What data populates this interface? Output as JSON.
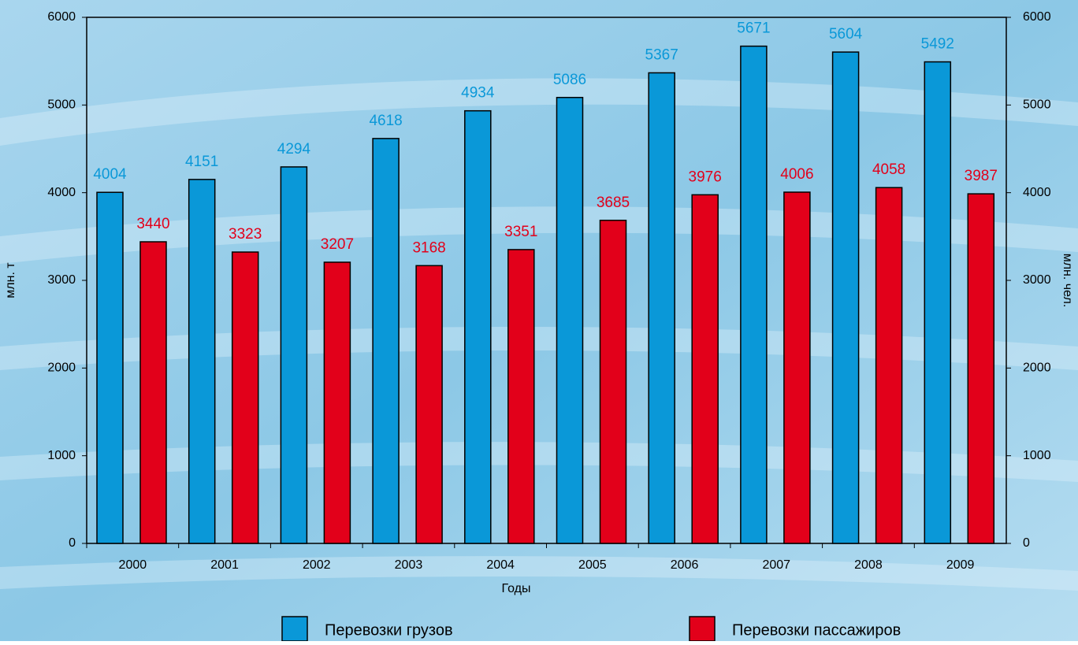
{
  "chart_data": {
    "type": "bar",
    "categories": [
      "2000",
      "2001",
      "2002",
      "2003",
      "2004",
      "2005",
      "2006",
      "2007",
      "2008",
      "2009"
    ],
    "series": [
      {
        "name": "Перевозки грузов",
        "color": "#0a98d8",
        "values": [
          4004,
          4151,
          4294,
          4618,
          4934,
          5086,
          5367,
          5671,
          5604,
          5492
        ]
      },
      {
        "name": "Перевозки пассажиров",
        "color": "#e2001a",
        "axis": "y2",
        "values": [
          3440,
          3323,
          3207,
          3168,
          3351,
          3685,
          3976,
          4006,
          4058,
          3987
        ]
      }
    ],
    "xlabel": "Годы",
    "ylabel": "млн. т",
    "y2label": "млн. чел.",
    "ylim": [
      0,
      6000
    ],
    "yticks": [
      0,
      1000,
      2000,
      3000,
      4000,
      5000,
      6000
    ],
    "y2lim": [
      0,
      6000
    ],
    "y2ticks": [
      0,
      1000,
      2000,
      3000,
      4000,
      5000,
      6000
    ],
    "grid": false,
    "legend": "bottom"
  }
}
